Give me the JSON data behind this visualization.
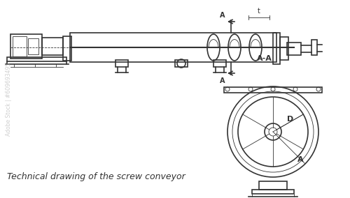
{
  "bg_color": "#ffffff",
  "line_color": "#333333",
  "light_gray": "#aaaaaa",
  "medium_gray": "#888888",
  "title_text": "Technical drawing of the screw conveyor",
  "label_A_top": "A",
  "label_A_bottom": "A",
  "label_t": "t",
  "label_AA": "A-A",
  "label_D": "D",
  "label_A_circle": "A",
  "watermark_color": "#cccccc",
  "lw_main": 1.2,
  "lw_thin": 0.6,
  "lw_thick": 1.8
}
